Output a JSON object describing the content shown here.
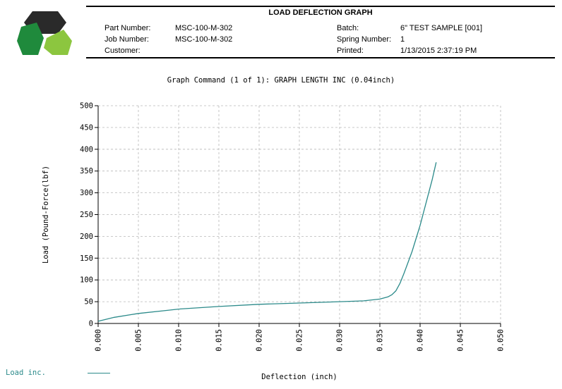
{
  "report": {
    "title": "LOAD DEFLECTION GRAPH",
    "fields": [
      {
        "label": "Part Number:",
        "value": "MSC-100-M-302"
      },
      {
        "label": "Job Number:",
        "value": "MSC-100-M-302"
      },
      {
        "label": "Customer:",
        "value": ""
      },
      {
        "label": "Batch:",
        "value": "6\" TEST SAMPLE [001]"
      },
      {
        "label": "Spring Number:",
        "value": "1"
      },
      {
        "label": "Printed:",
        "value": "1/13/2015 2:37:19 PM"
      }
    ]
  },
  "logo": {
    "colors": {
      "dark": "#2a2a2a",
      "green_dark": "#1f8a3c",
      "green_light": "#8cc63f"
    }
  },
  "graph_caption": "Graph Command (1 of 1): GRAPH LENGTH INC (0.04inch)",
  "chart_data": {
    "type": "line",
    "title": "",
    "xlabel": "Deflection (inch)",
    "ylabel": "Load (Pound-Force(lbf)",
    "xlim": [
      0,
      0.05
    ],
    "ylim": [
      0,
      500
    ],
    "x_ticks": [
      "0.000",
      "0.005",
      "0.010",
      "0.015",
      "0.020",
      "0.025",
      "0.030",
      "0.035",
      "0.040",
      "0.045",
      "0.050"
    ],
    "y_ticks": [
      "0",
      "50",
      "100",
      "150",
      "200",
      "250",
      "300",
      "350",
      "400",
      "450",
      "500"
    ],
    "grid": true,
    "line_color": "#2b8a8a",
    "series": [
      {
        "name": "Load inc.",
        "x": [
          0.0,
          0.002,
          0.004,
          0.005,
          0.008,
          0.01,
          0.015,
          0.02,
          0.025,
          0.03,
          0.033,
          0.035,
          0.036,
          0.0365,
          0.037,
          0.0375,
          0.038,
          0.0385,
          0.039,
          0.0395,
          0.04,
          0.0405,
          0.041,
          0.0415,
          0.042
        ],
        "y": [
          5,
          14,
          20,
          23,
          29,
          33,
          39,
          44,
          47,
          50,
          52,
          56,
          61,
          66,
          75,
          92,
          115,
          140,
          165,
          195,
          225,
          260,
          295,
          330,
          370
        ]
      }
    ]
  }
}
